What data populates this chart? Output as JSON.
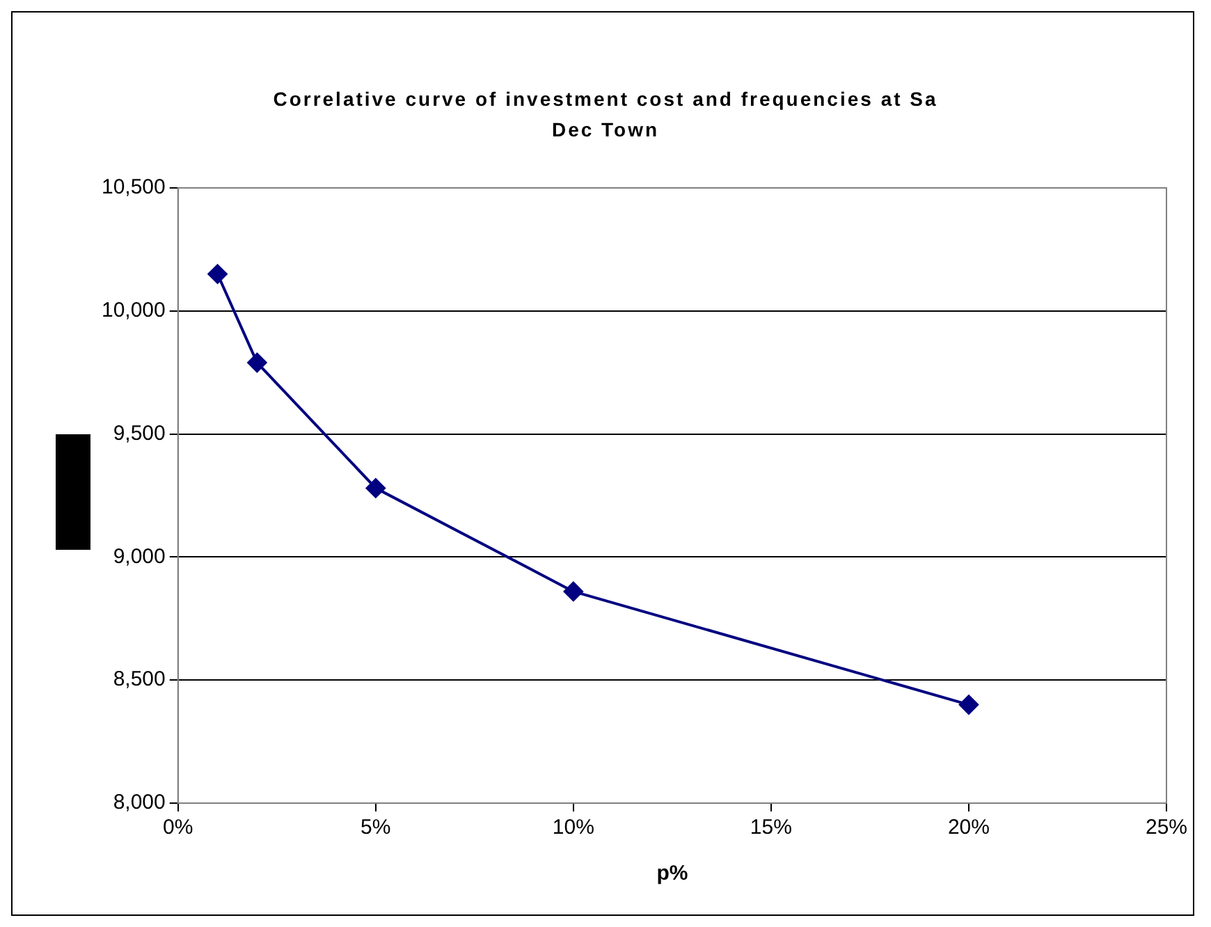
{
  "chart_data": {
    "type": "line",
    "title": "Correlative curve of investment cost and frequencies at Sa Dec Town",
    "xlabel": "p%",
    "x": [
      1,
      2,
      5,
      10,
      20
    ],
    "series": [
      {
        "color": "#000080",
        "values": [
          10150,
          9790,
          9280,
          8860,
          8400
        ]
      }
    ],
    "xlim": [
      0,
      25
    ],
    "xticks": [
      {
        "value": 0,
        "label": "0%"
      },
      {
        "value": 5,
        "label": "5%"
      },
      {
        "value": 10,
        "label": "10%"
      },
      {
        "value": 15,
        "label": "15%"
      },
      {
        "value": 20,
        "label": "20%"
      },
      {
        "value": 25,
        "label": "25%"
      }
    ],
    "ylim": [
      8000,
      10500
    ],
    "yticks": [
      {
        "value": 8000,
        "label": "8,000"
      },
      {
        "value": 8500,
        "label": "8,500"
      },
      {
        "value": 9000,
        "label": "9,000"
      },
      {
        "value": 9500,
        "label": "9,500"
      },
      {
        "value": 10000,
        "label": "10,000"
      },
      {
        "value": 10500,
        "label": "10,500"
      }
    ],
    "grid": "y",
    "legend": false,
    "marker": "diamond",
    "line_style": "solid"
  }
}
